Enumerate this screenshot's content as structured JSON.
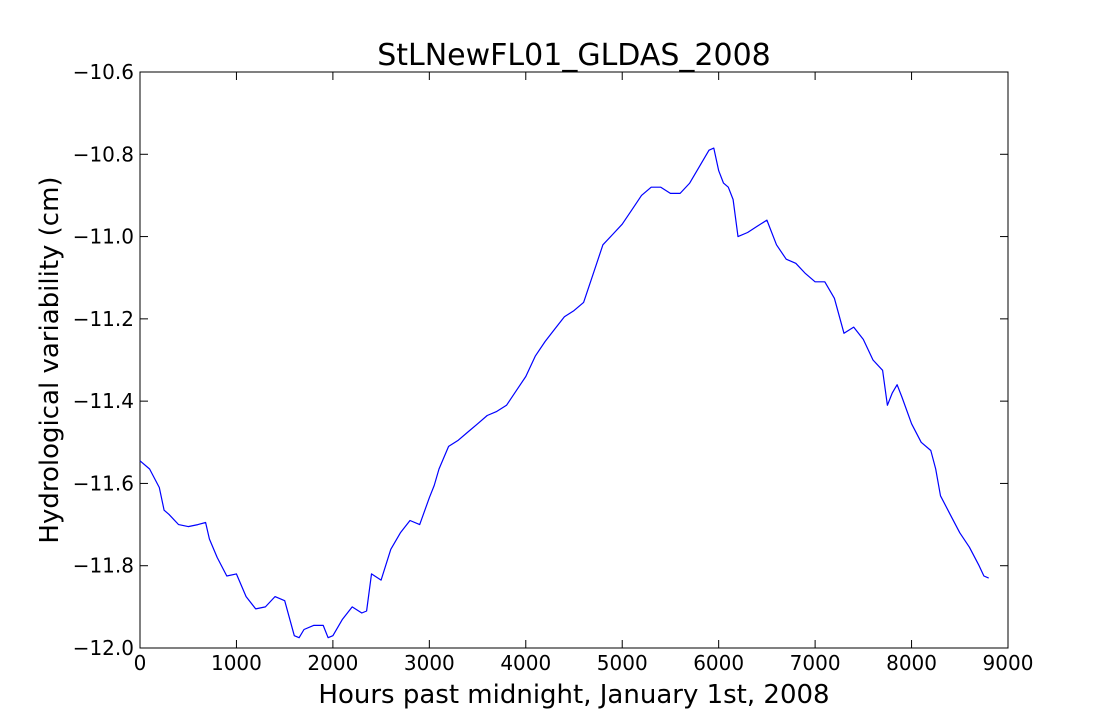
{
  "chart_data": {
    "type": "line",
    "title": "StLNewFL01_GLDAS_2008",
    "xlabel": "Hours past midnight, January 1st, 2008",
    "ylabel": "Hydrological variability (cm)",
    "xlim": [
      0,
      9000
    ],
    "ylim": [
      -12.0,
      -10.6
    ],
    "xticks": [
      0,
      1000,
      2000,
      3000,
      4000,
      5000,
      6000,
      7000,
      8000,
      9000
    ],
    "xtick_labels": [
      "0",
      "1000",
      "2000",
      "3000",
      "4000",
      "5000",
      "6000",
      "7000",
      "8000",
      "9000"
    ],
    "yticks": [
      -12.0,
      -11.8,
      -11.6,
      -11.4,
      -11.2,
      -11.0,
      -10.8,
      -10.6
    ],
    "ytick_labels": [
      "−12.0",
      "−11.8",
      "−11.6",
      "−11.4",
      "−11.2",
      "−11.0",
      "−10.8",
      "−10.6"
    ],
    "grid": false,
    "series": [
      {
        "color": "#0000ff",
        "x": [
          0,
          100,
          200,
          250,
          300,
          400,
          500,
          600,
          680,
          720,
          800,
          900,
          1000,
          1100,
          1200,
          1300,
          1400,
          1500,
          1600,
          1650,
          1700,
          1800,
          1900,
          1950,
          2000,
          2100,
          2200,
          2300,
          2350,
          2400,
          2500,
          2600,
          2700,
          2800,
          2900,
          3000,
          3050,
          3100,
          3200,
          3300,
          3400,
          3500,
          3600,
          3700,
          3800,
          3900,
          4000,
          4100,
          4200,
          4300,
          4400,
          4500,
          4600,
          4700,
          4800,
          4900,
          5000,
          5100,
          5200,
          5300,
          5400,
          5500,
          5600,
          5700,
          5800,
          5900,
          5950,
          6000,
          6050,
          6100,
          6150,
          6200,
          6300,
          6400,
          6500,
          6600,
          6700,
          6800,
          6900,
          7000,
          7100,
          7200,
          7300,
          7400,
          7500,
          7600,
          7700,
          7750,
          7800,
          7850,
          7900,
          8000,
          8100,
          8200,
          8250,
          8300,
          8400,
          8500,
          8600,
          8700,
          8750,
          8800
        ],
        "y": [
          -11.545,
          -11.565,
          -11.61,
          -11.665,
          -11.675,
          -11.7,
          -11.705,
          -11.7,
          -11.695,
          -11.735,
          -11.78,
          -11.825,
          -11.82,
          -11.875,
          -11.905,
          -11.9,
          -11.875,
          -11.885,
          -11.97,
          -11.975,
          -11.955,
          -11.945,
          -11.945,
          -11.975,
          -11.97,
          -11.93,
          -11.9,
          -11.915,
          -11.91,
          -11.82,
          -11.835,
          -11.76,
          -11.72,
          -11.69,
          -11.7,
          -11.635,
          -11.605,
          -11.565,
          -11.51,
          -11.495,
          -11.475,
          -11.455,
          -11.435,
          -11.425,
          -11.41,
          -11.375,
          -11.34,
          -11.29,
          -11.255,
          -11.225,
          -11.195,
          -11.18,
          -11.16,
          -11.09,
          -11.02,
          -10.995,
          -10.97,
          -10.935,
          -10.9,
          -10.88,
          -10.88,
          -10.895,
          -10.895,
          -10.87,
          -10.83,
          -10.79,
          -10.785,
          -10.84,
          -10.87,
          -10.88,
          -10.91,
          -11.0,
          -10.99,
          -10.975,
          -10.96,
          -11.02,
          -11.055,
          -11.065,
          -11.09,
          -11.11,
          -11.11,
          -11.15,
          -11.235,
          -11.22,
          -11.25,
          -11.3,
          -11.325,
          -11.41,
          -11.38,
          -11.36,
          -11.39,
          -11.455,
          -11.5,
          -11.52,
          -11.565,
          -11.63,
          -11.675,
          -11.72,
          -11.755,
          -11.8,
          -11.825,
          -11.83
        ]
      }
    ]
  }
}
